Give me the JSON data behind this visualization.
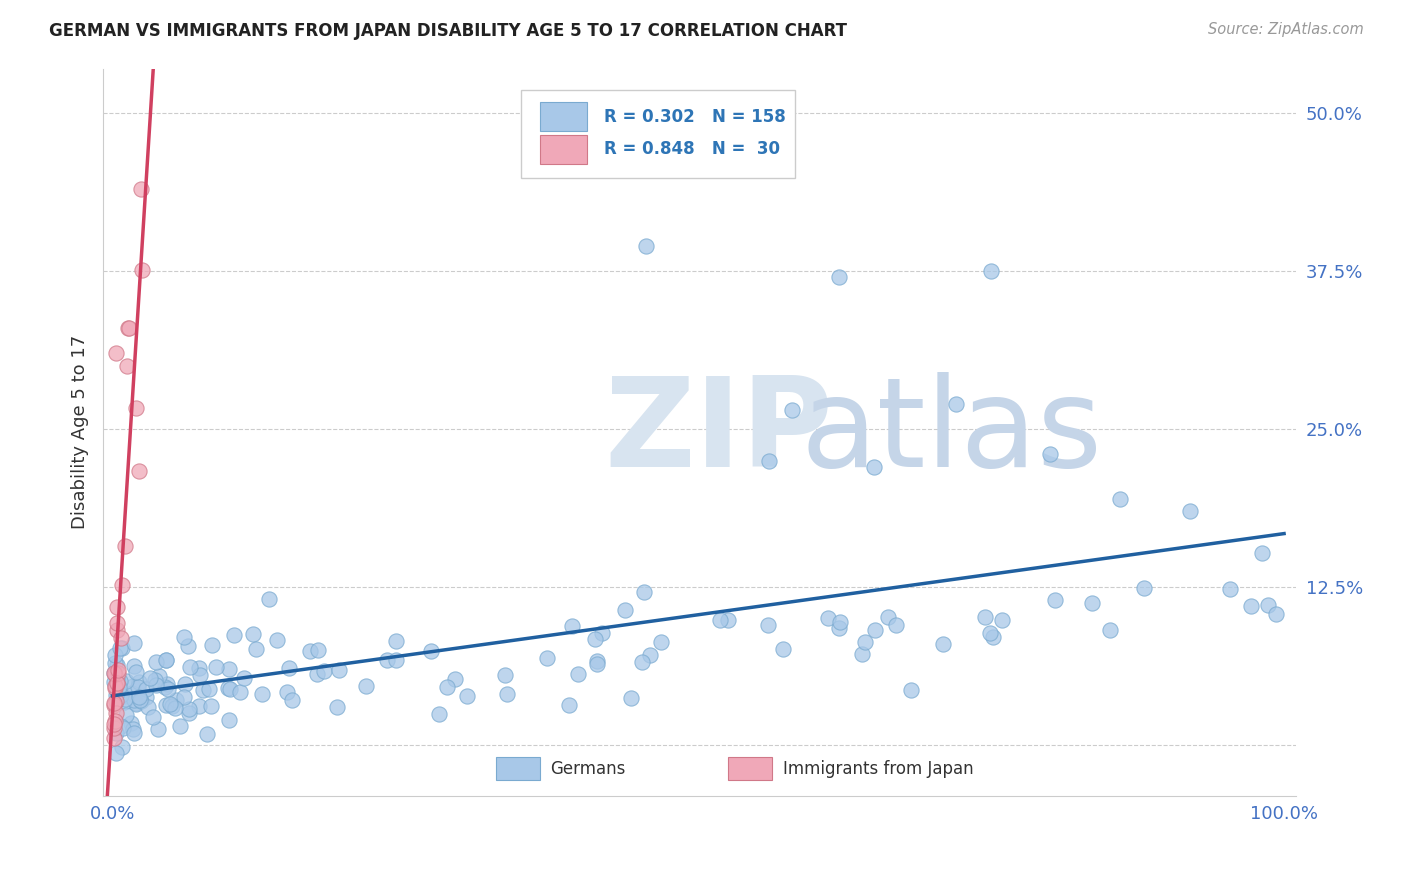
{
  "title": "GERMAN VS IMMIGRANTS FROM JAPAN DISABILITY AGE 5 TO 17 CORRELATION CHART",
  "source": "Source: ZipAtlas.com",
  "ylabel": "Disability Age 5 to 17",
  "german_R": 0.302,
  "german_N": 158,
  "japan_R": 0.848,
  "japan_N": 30,
  "german_color": "#A8C8E8",
  "german_edge_color": "#7AAAD0",
  "japan_color": "#F0A8B8",
  "japan_edge_color": "#D07888",
  "german_line_color": "#2060A0",
  "japan_line_color": "#D04060",
  "tick_color": "#4472C4",
  "grid_color": "#CCCCCC",
  "background_color": "#ffffff",
  "xlim": [
    -0.008,
    1.01
  ],
  "ylim": [
    -0.04,
    0.535
  ],
  "yticks": [
    0.0,
    0.125,
    0.25,
    0.375,
    0.5
  ],
  "yticklabels": [
    "",
    "12.5%",
    "25.0%",
    "37.5%",
    "50.0%"
  ],
  "watermark_zip_color": "#D0DCF0",
  "watermark_atlas_color": "#C0CCE0"
}
